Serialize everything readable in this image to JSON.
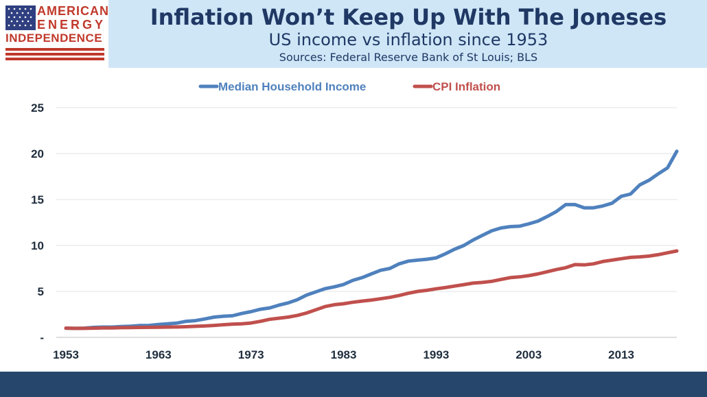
{
  "header": {
    "title": "Inflation Won’t Keep Up With The Joneses",
    "subtitle": "US income vs inflation since 1953",
    "sources": "Sources: Federal Reserve Bank of St Louis; BLS"
  },
  "logo": {
    "line1": "AMERICAN",
    "line2": "ENERGY",
    "line3": "INDEPENDENCE",
    "flag_color": "#2f3f80",
    "stripe_color": "#c0392b"
  },
  "colors": {
    "header_bg": "#cfe6f7",
    "title": "#1f3864",
    "footer_band": "#26476b",
    "income": "#4f81bd",
    "cpi": "#c0504d"
  },
  "chart_data": {
    "type": "line",
    "title": "",
    "xlabel": "",
    "ylabel": "",
    "xlim": [
      1953,
      2019
    ],
    "ylim": [
      0,
      25
    ],
    "grid": true,
    "legend_position": "top",
    "x_tick_labels": [
      "1953",
      "1963",
      "1973",
      "1983",
      "1993",
      "2003",
      "2013"
    ],
    "y_tick_labels": [
      "-",
      "5",
      "10",
      "15",
      "20",
      "25"
    ],
    "x": [
      1953,
      1954,
      1955,
      1956,
      1957,
      1958,
      1959,
      1960,
      1961,
      1962,
      1963,
      1964,
      1965,
      1966,
      1967,
      1968,
      1969,
      1970,
      1971,
      1972,
      1973,
      1974,
      1975,
      1976,
      1977,
      1978,
      1979,
      1980,
      1981,
      1982,
      1983,
      1984,
      1985,
      1986,
      1987,
      1988,
      1989,
      1990,
      1991,
      1992,
      1993,
      1994,
      1995,
      1996,
      1997,
      1998,
      1999,
      2000,
      2001,
      2002,
      2003,
      2004,
      2005,
      2006,
      2007,
      2008,
      2009,
      2010,
      2011,
      2012,
      2013,
      2014,
      2015,
      2016,
      2017,
      2018,
      2019
    ],
    "series": [
      {
        "name": "Median Household Income",
        "color": "#4f81bd",
        "values": [
          1.0,
          0.98,
          1.0,
          1.08,
          1.12,
          1.12,
          1.18,
          1.22,
          1.28,
          1.3,
          1.4,
          1.48,
          1.55,
          1.75,
          1.82,
          2.0,
          2.2,
          2.3,
          2.35,
          2.6,
          2.8,
          3.05,
          3.2,
          3.5,
          3.75,
          4.1,
          4.6,
          4.95,
          5.3,
          5.5,
          5.75,
          6.2,
          6.5,
          6.9,
          7.3,
          7.5,
          8.0,
          8.3,
          8.4,
          8.5,
          8.65,
          9.1,
          9.6,
          10.0,
          10.6,
          11.1,
          11.6,
          11.9,
          12.05,
          12.1,
          12.35,
          12.65,
          13.15,
          13.7,
          14.45,
          14.45,
          14.1,
          14.1,
          14.3,
          14.6,
          15.35,
          15.6,
          16.6,
          17.1,
          17.8,
          18.45,
          20.25
        ]
      },
      {
        "name": "CPI Inflation",
        "color": "#c0504d",
        "values": [
          1.0,
          0.98,
          0.98,
          1.0,
          1.02,
          1.03,
          1.05,
          1.06,
          1.08,
          1.09,
          1.1,
          1.12,
          1.13,
          1.16,
          1.2,
          1.24,
          1.3,
          1.37,
          1.43,
          1.48,
          1.56,
          1.74,
          1.96,
          2.08,
          2.2,
          2.38,
          2.65,
          3.0,
          3.35,
          3.55,
          3.66,
          3.82,
          3.95,
          4.06,
          4.2,
          4.35,
          4.56,
          4.8,
          5.0,
          5.12,
          5.28,
          5.42,
          5.58,
          5.74,
          5.9,
          5.98,
          6.1,
          6.3,
          6.5,
          6.58,
          6.72,
          6.9,
          7.14,
          7.38,
          7.58,
          7.92,
          7.89,
          8.0,
          8.25,
          8.4,
          8.56,
          8.7,
          8.76,
          8.84,
          9.0,
          9.2,
          9.4
        ]
      }
    ]
  }
}
